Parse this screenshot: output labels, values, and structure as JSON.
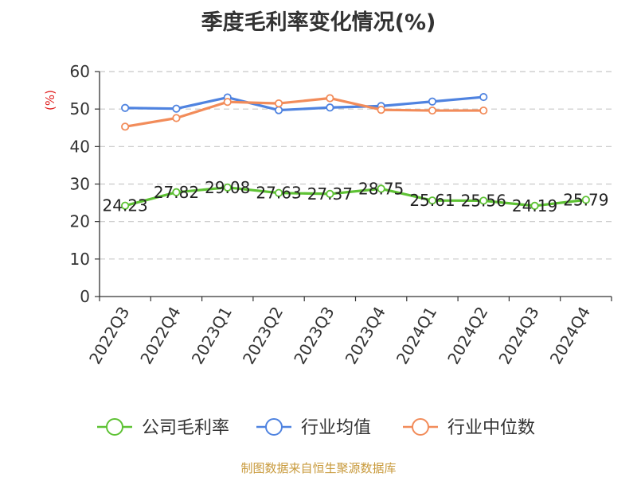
{
  "title": "季度毛利率变化情况(%)",
  "source": "制图数据来自恒生聚源数据库",
  "chart_data": {
    "type": "line",
    "title": "季度毛利率变化情况(%)",
    "ylabel": "(%)",
    "xlabel": "",
    "ylim": [
      0,
      60
    ],
    "yticks": [
      0,
      10,
      20,
      30,
      40,
      50,
      60
    ],
    "grid": true,
    "legend_position": "bottom",
    "categories": [
      "2022Q3",
      "2022Q4",
      "2023Q1",
      "2023Q2",
      "2023Q3",
      "2023Q4",
      "2024Q1",
      "2024Q2",
      "2024Q3",
      "2024Q4"
    ],
    "series": [
      {
        "name": "公司毛利率",
        "color": "#5ec234",
        "values": [
          24.23,
          27.82,
          29.08,
          27.63,
          27.37,
          28.75,
          25.61,
          25.56,
          24.19,
          25.79
        ],
        "labels": [
          "24.23",
          "27.82",
          "29.08",
          "27.63",
          "27.37",
          "28.75",
          "25.61",
          "25.56",
          "24.19",
          "25.79"
        ]
      },
      {
        "name": "行业均值",
        "color": "#4f83e0",
        "values": [
          50.3,
          50.1,
          53.1,
          49.7,
          50.4,
          50.8,
          52.0,
          53.2,
          null,
          null
        ]
      },
      {
        "name": "行业中位数",
        "color": "#f28c5a",
        "values": [
          45.3,
          47.6,
          51.9,
          51.5,
          52.9,
          49.8,
          49.6,
          49.6,
          null,
          null
        ]
      }
    ]
  }
}
